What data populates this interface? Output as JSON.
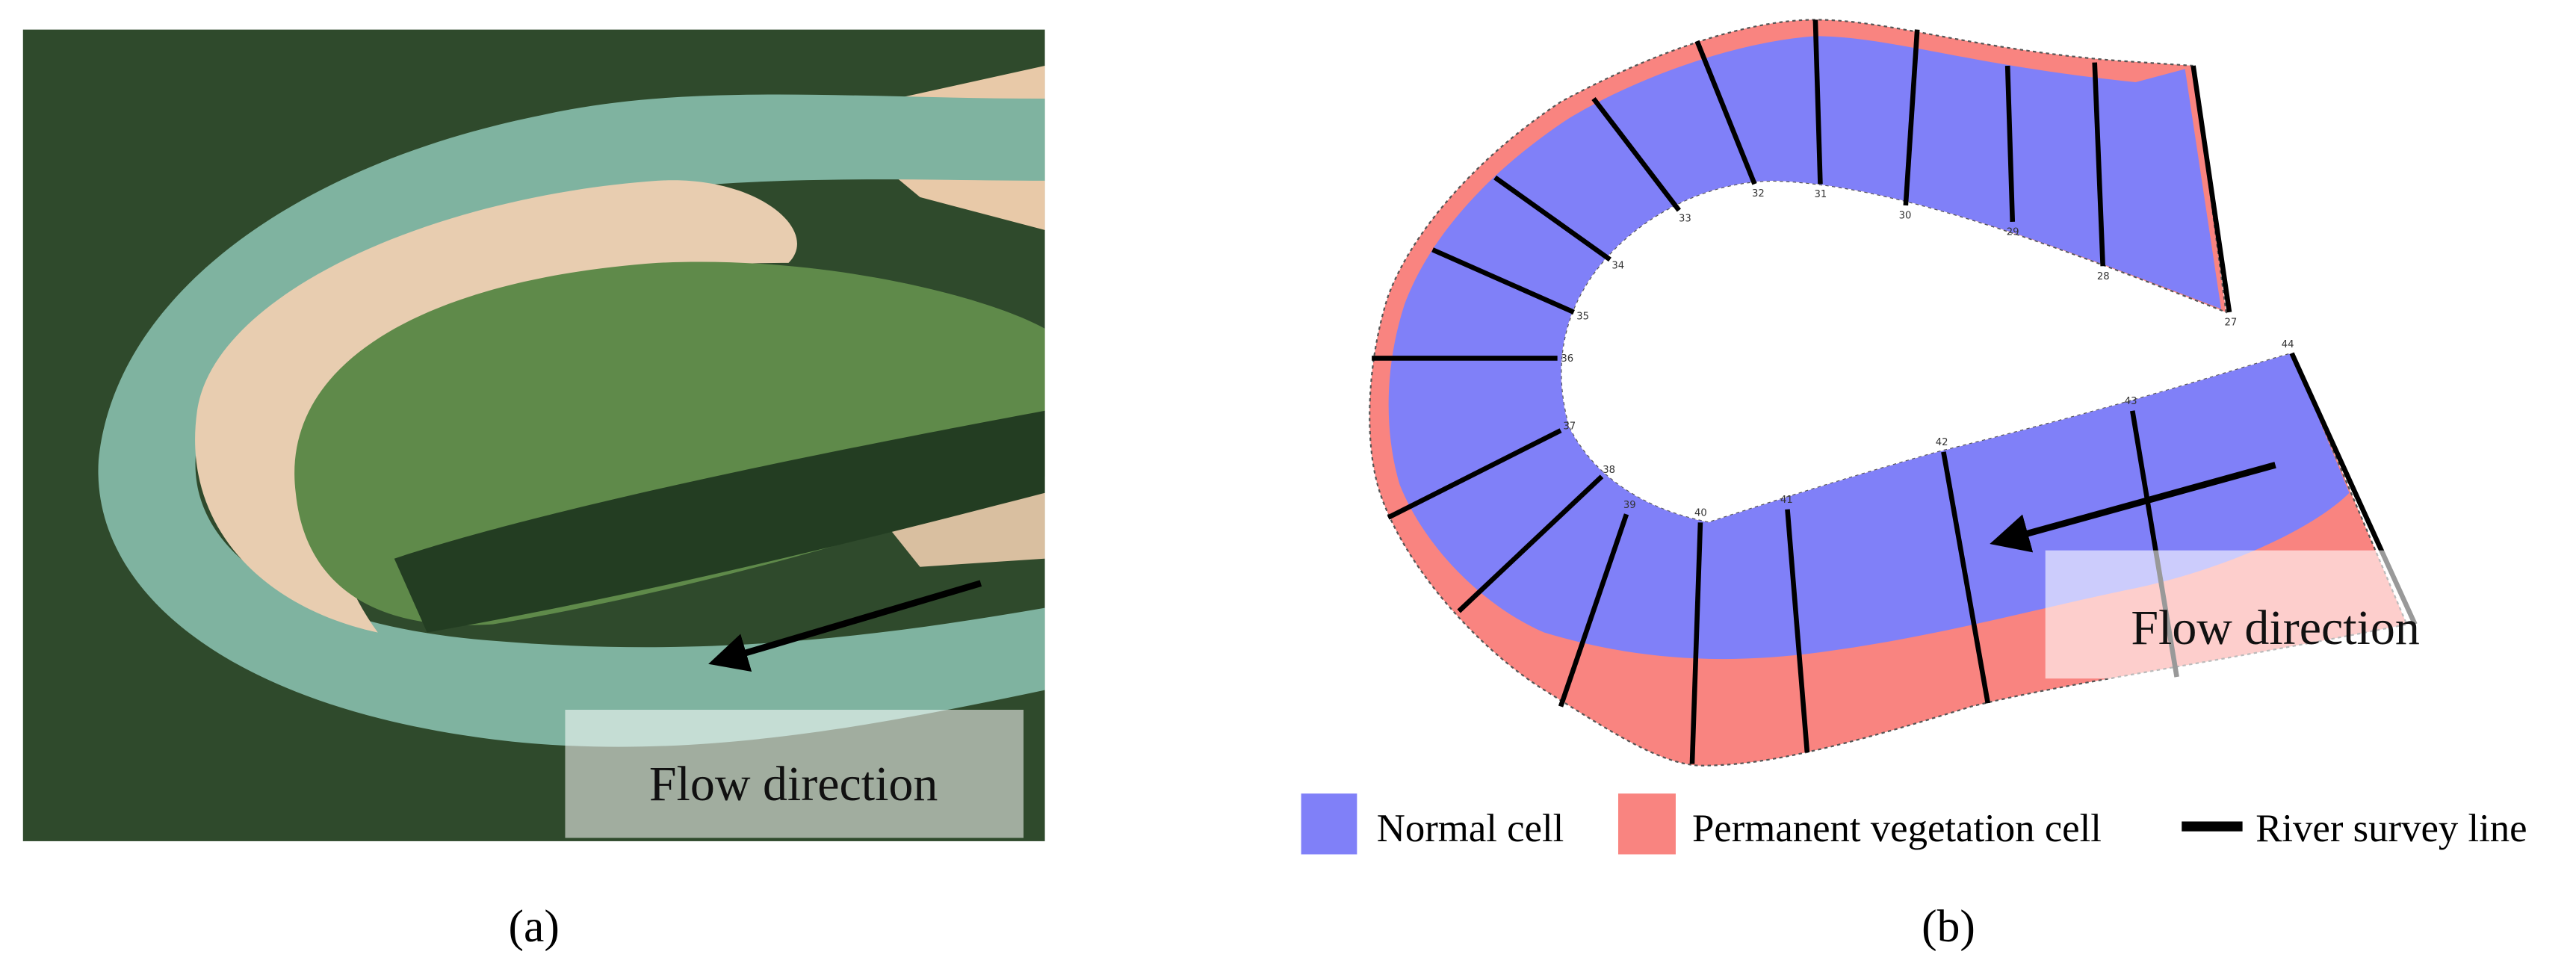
{
  "panels": [
    {
      "label": "(a)",
      "annotation": "Flow direction"
    },
    {
      "label": "(b)",
      "annotation": "Flow direction",
      "survey_lines": [
        "27",
        "28",
        "29",
        "30",
        "31",
        "32",
        "33",
        "34",
        "35",
        "36",
        "37",
        "38",
        "39",
        "40",
        "41",
        "42",
        "43",
        "44"
      ],
      "legend": [
        "Normal cell",
        "Permanent vegetation cell",
        "River survey line"
      ]
    }
  ]
}
